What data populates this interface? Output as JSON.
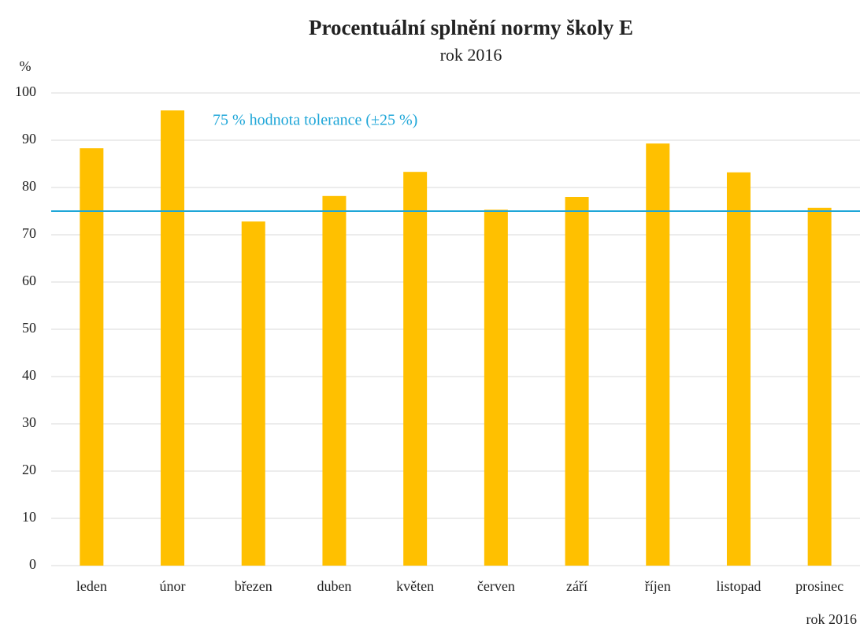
{
  "chart_data": {
    "type": "bar",
    "title": "Procentuální splnění normy školy E",
    "subtitle": "rok 2016",
    "y_label": "%",
    "x_label": "rok 2016",
    "categories": [
      "leden",
      "únor",
      "březen",
      "duben",
      "květen",
      "červen",
      "září",
      "říjen",
      "listopad",
      "prosinec"
    ],
    "values": [
      88.3,
      96.3,
      72.8,
      78.2,
      83.3,
      75.3,
      78,
      89.3,
      83.2,
      75.7
    ],
    "color": "#ffc000",
    "ylim": [
      0,
      100
    ],
    "yticks": [
      0,
      10,
      20,
      30,
      40,
      50,
      60,
      70,
      80,
      90,
      100
    ],
    "grid": true,
    "reference_line": {
      "value": 75,
      "label": "75 % hodnota tolerance (±25 %)",
      "color": "#1ea6d8"
    }
  }
}
